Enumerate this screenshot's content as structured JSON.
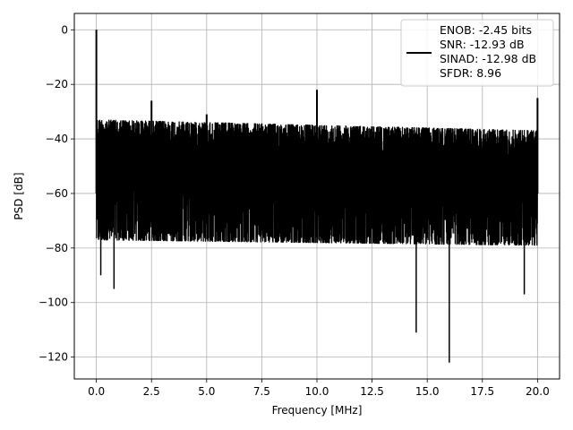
{
  "chart_data": {
    "type": "line",
    "xlabel": "Frequency [MHz]",
    "ylabel": "PSD [dB]",
    "xlim": [
      -1.0,
      21.0
    ],
    "ylim": [
      -128,
      6
    ],
    "x_ticks": [
      0.0,
      2.5,
      5.0,
      7.5,
      10.0,
      12.5,
      15.0,
      17.5,
      20.0
    ],
    "x_tick_labels": [
      "0.0",
      "2.5",
      "5.0",
      "7.5",
      "10.0",
      "12.5",
      "15.0",
      "17.5",
      "20.0"
    ],
    "y_ticks": [
      0,
      -20,
      -40,
      -60,
      -80,
      -100,
      -120
    ],
    "y_tick_labels": [
      "0",
      "−20",
      "−40",
      "−60",
      "−80",
      "−100",
      "−120"
    ],
    "grid": true,
    "line_color": "#000000",
    "grid_color": "#b0b0b0",
    "legend": {
      "placement": "top-right",
      "entries": [
        "ENOB: -2.45 bits",
        "SNR: -12.93 dB",
        "SINAD: -12.98 dB",
        "SFDR: 8.96"
      ]
    },
    "series": [
      {
        "x_range": [
          0.0,
          20.0
        ],
        "noise_floor_upper_db": [
          -33,
          -37
        ],
        "noise_floor_lower_db": [
          -77,
          -79
        ],
        "peaks": [
          {
            "x": 0.0,
            "y": 0
          },
          {
            "x": 2.5,
            "y": -26
          },
          {
            "x": 5.0,
            "y": -31
          },
          {
            "x": 10.0,
            "y": -22
          },
          {
            "x": 20.0,
            "y": -25
          }
        ],
        "dips": [
          {
            "x": 0.2,
            "y": -90
          },
          {
            "x": 0.8,
            "y": -95
          },
          {
            "x": 14.5,
            "y": -111
          },
          {
            "x": 16.0,
            "y": -122
          },
          {
            "x": 19.4,
            "y": -97
          }
        ]
      }
    ]
  }
}
